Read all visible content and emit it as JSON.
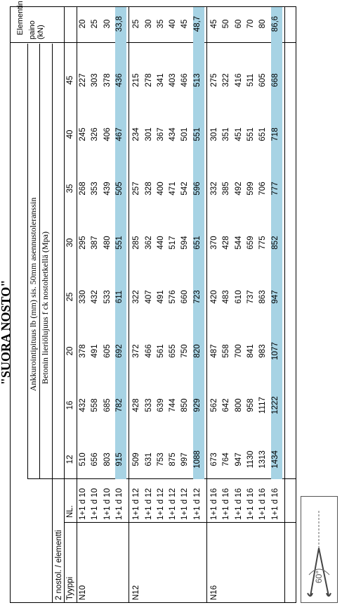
{
  "title": "\"SUORA NOSTO\"",
  "header": {
    "group_label": "2 nostol. / elementti",
    "type_label": "Tyyppi",
    "count_label": "NL.",
    "anchor_label": "Ankkurointipituus lb (mm) sis. 50mm asennustoleranssin",
    "strength_label": "Betonin lieriölujuus f ck nostohetkellä (Mpa)",
    "element_label_1": "Elementin",
    "element_label_2": "paino (kN)",
    "strengths": [
      "12",
      "16",
      "20",
      "25",
      "30",
      "35",
      "40",
      "45"
    ]
  },
  "groups": [
    {
      "type": "N10",
      "rows": [
        {
          "nl": "1+1 d 10",
          "vals": [
            "510",
            "432",
            "378",
            "330",
            "295",
            "268",
            "245",
            "227"
          ],
          "weight": "20"
        },
        {
          "nl": "1+1 d 10",
          "vals": [
            "656",
            "558",
            "491",
            "432",
            "387",
            "353",
            "326",
            "303"
          ],
          "weight": "25"
        },
        {
          "nl": "1+1 d 10",
          "vals": [
            "803",
            "685",
            "605",
            "533",
            "480",
            "439",
            "406",
            "378"
          ],
          "weight": "30"
        },
        {
          "nl": "1+1 d 10",
          "vals": [
            "915",
            "782",
            "692",
            "611",
            "551",
            "505",
            "467",
            "436"
          ],
          "weight": "33,8",
          "hl": true
        }
      ]
    },
    {
      "type": "N12",
      "rows": [
        {
          "nl": "1+1 d 12",
          "vals": [
            "509",
            "428",
            "372",
            "322",
            "285",
            "257",
            "234",
            "215"
          ],
          "weight": "25"
        },
        {
          "nl": "1+1 d 12",
          "vals": [
            "631",
            "533",
            "466",
            "407",
            "362",
            "328",
            "301",
            "278"
          ],
          "weight": "30"
        },
        {
          "nl": "1+1 d 12",
          "vals": [
            "753",
            "639",
            "561",
            "491",
            "440",
            "400",
            "367",
            "341"
          ],
          "weight": "35"
        },
        {
          "nl": "1+1 d 12",
          "vals": [
            "875",
            "744",
            "655",
            "576",
            "517",
            "471",
            "434",
            "403"
          ],
          "weight": "40"
        },
        {
          "nl": "1+1 d 12",
          "vals": [
            "997",
            "850",
            "750",
            "660",
            "594",
            "542",
            "501",
            "466"
          ],
          "weight": "45"
        },
        {
          "nl": "1+1 d 12",
          "vals": [
            "1088",
            "929",
            "820",
            "723",
            "651",
            "596",
            "551",
            "513"
          ],
          "weight": "48,7",
          "hl": true
        }
      ]
    },
    {
      "type": "N16",
      "rows": [
        {
          "nl": "1+1 d 16",
          "vals": [
            "673",
            "562",
            "487",
            "420",
            "370",
            "332",
            "301",
            "275"
          ],
          "weight": "45"
        },
        {
          "nl": "1+1 d 16",
          "vals": [
            "764",
            "642",
            "558",
            "483",
            "428",
            "385",
            "351",
            "322"
          ],
          "weight": "50"
        },
        {
          "nl": "1+1 d 16",
          "vals": [
            "947",
            "800",
            "700",
            "610",
            "544",
            "492",
            "451",
            "416"
          ],
          "weight": "60"
        },
        {
          "nl": "1+1 d 16",
          "vals": [
            "1130",
            "958",
            "841",
            "737",
            "659",
            "599",
            "551",
            "511"
          ],
          "weight": "70"
        },
        {
          "nl": "1+1 d 16",
          "vals": [
            "1313",
            "1117",
            "983",
            "863",
            "775",
            "706",
            "651",
            "605"
          ],
          "weight": "80"
        },
        {
          "nl": "1+1 d 16",
          "vals": [
            "1434",
            "1222",
            "1077",
            "947",
            "852",
            "777",
            "718",
            "668"
          ],
          "weight": "86,6",
          "hl": true
        }
      ]
    }
  ],
  "figure": {
    "angle_label": "60°"
  },
  "colors": {
    "highlight": "#a7d3e4"
  }
}
